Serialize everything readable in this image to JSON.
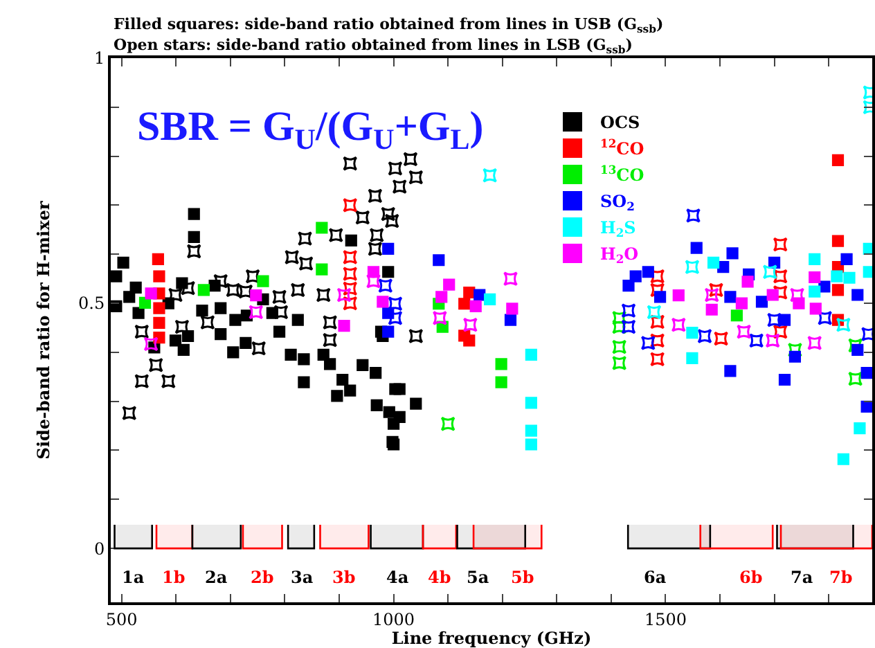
{
  "chart_data": {
    "type": "scatter",
    "title": "Filled squares: side-band ratio obtained from lines in USB (G$_{ssb}$)",
    "subtitle": "Open stars: side-band ratio obtained from lines in LSB (G$_{ssb}$)",
    "xlabel": "Line frequency (GHz)",
    "ylabel": "Side-band ratio for H-mixer",
    "annotations": [
      "SBR = G$_{U}$/(G$_{U}$+G$_{L}$)"
    ],
    "xlim": [
      480,
      1880
    ],
    "ylim": [
      -0.11,
      1
    ],
    "xticks": [
      500,
      {
        "value": 600,
        "label": null
      },
      {
        "value": 700,
        "label": null
      },
      {
        "value": 800,
        "label": null
      },
      {
        "value": 900,
        "label": null
      },
      1000,
      {
        "value": 1100,
        "label": null
      },
      {
        "value": 1200,
        "label": null
      },
      {
        "value": 1300,
        "label": null
      },
      {
        "value": 1400,
        "label": null
      },
      1500,
      {
        "value": 1600,
        "label": null
      },
      {
        "value": 1700,
        "label": null
      },
      {
        "value": 1800,
        "label": null
      }
    ],
    "yticks": [
      0,
      {
        "value": 0.1,
        "label": null
      },
      {
        "value": 0.2,
        "label": null
      },
      {
        "value": 0.3,
        "label": null
      },
      {
        "value": 0.4,
        "label": null
      },
      0.5,
      {
        "value": 0.6,
        "label": null
      },
      {
        "value": 0.7,
        "label": null
      },
      {
        "value": 0.8,
        "label": null
      },
      {
        "value": 0.9,
        "label": null
      },
      1
    ],
    "grid": false,
    "legend": "top",
    "series": [
      {
        "name": "OCS",
        "color": "#000000",
        "marker": "square",
        "x": [
          503,
          490,
          490,
          514,
          526,
          531,
          560,
          586,
          599,
          611,
          614,
          622,
          633,
          633,
          648,
          671,
          682,
          682,
          705,
          709,
          728,
          730,
          760,
          777,
          790,
          811,
          824,
          835,
          835,
          871,
          883,
          896,
          906,
          920,
          922,
          943,
          967,
          969,
          977,
          980,
          990,
          992,
          1000,
          1011,
          1000,
          1011,
          1041,
          1003,
          998
        ],
        "values": [
          0.583,
          0.555,
          0.494,
          0.513,
          0.532,
          0.48,
          0.41,
          0.5,
          0.424,
          0.541,
          0.405,
          0.433,
          0.682,
          0.635,
          0.485,
          0.536,
          0.49,
          0.437,
          0.4,
          0.466,
          0.419,
          0.475,
          0.508,
          0.48,
          0.442,
          0.395,
          0.466,
          0.386,
          0.339,
          0.395,
          0.376,
          0.311,
          0.344,
          0.322,
          0.628,
          0.374,
          0.358,
          0.292,
          0.442,
          0.433,
          0.564,
          0.278,
          0.254,
          0.325,
          0.212,
          0.268,
          0.295,
          0.325,
          0.217
        ]
      },
      {
        "color": "#000000",
        "marker": "star",
        "x": [
          514,
          537,
          537,
          563,
          586,
          599,
          611,
          622,
          633,
          658,
          682,
          705,
          728,
          741,
          752,
          790,
          793,
          813,
          824,
          837,
          839,
          871,
          883,
          883,
          894,
          920,
          943,
          966,
          969,
          990,
          1003,
          1011,
          1031,
          1041,
          1041,
          997,
          966
        ],
        "values": [
          0.276,
          0.341,
          0.442,
          0.374,
          0.341,
          0.517,
          0.452,
          0.531,
          0.606,
          0.461,
          0.545,
          0.527,
          0.524,
          0.555,
          0.408,
          0.513,
          0.482,
          0.594,
          0.527,
          0.632,
          0.581,
          0.517,
          0.461,
          0.425,
          0.639,
          0.785,
          0.675,
          0.719,
          0.639,
          0.682,
          0.775,
          0.738,
          0.794,
          0.757,
          0.433,
          0.668,
          0.611
        ]
      },
      {
        "name": "$^{12}$CO",
        "color": "#ff0000",
        "marker": "square",
        "x": [
          567,
          569,
          569,
          569,
          569,
          569,
          1139,
          1130,
          1130,
          1139,
          1817,
          1817,
          1817,
          1817,
          1817
        ],
        "values": [
          0.59,
          0.555,
          0.52,
          0.49,
          0.46,
          0.43,
          0.522,
          0.499,
          0.434,
          0.424,
          0.792,
          0.627,
          0.574,
          0.527,
          0.466
        ]
      },
      {
        "color": "#ff0000",
        "marker": "star",
        "x": [
          920,
          920,
          920,
          920,
          920,
          1485,
          1485,
          1485,
          1485,
          1485,
          1593,
          1602,
          1711,
          1711,
          1711,
          1711
        ],
        "values": [
          0.7,
          0.594,
          0.56,
          0.53,
          0.5,
          0.555,
          0.527,
          0.462,
          0.424,
          0.386,
          0.527,
          0.428,
          0.62,
          0.555,
          0.522,
          0.442
        ]
      },
      {
        "name": "$^{13}$CO",
        "color": "#00ee00",
        "marker": "square",
        "x": [
          543,
          651,
          760,
          868,
          868,
          1083,
          1090,
          1198,
          1198,
          1631
        ],
        "values": [
          0.501,
          0.527,
          0.545,
          0.654,
          0.569,
          0.499,
          0.452,
          0.376,
          0.339,
          0.475
        ]
      },
      {
        "color": "#00ee00",
        "marker": "star",
        "x": [
          1100,
          1415,
          1415,
          1415,
          1415,
          1738,
          1849,
          1849
        ],
        "values": [
          0.254,
          0.47,
          0.452,
          0.411,
          0.378,
          0.405,
          0.414,
          0.346
        ]
      },
      {
        "name": "SO$_{2}$",
        "color": "#0000ff",
        "marker": "square",
        "x": [
          990,
          990,
          990,
          1083,
          1158,
          1215,
          1432,
          1445,
          1468,
          1490,
          1557,
          1623,
          1606,
          1619,
          1619,
          1653,
          1677,
          1700,
          1719,
          1719,
          1738,
          1792,
          1833,
          1853,
          1853,
          1870,
          1870
        ],
        "values": [
          0.611,
          0.48,
          0.442,
          0.588,
          0.517,
          0.466,
          0.536,
          0.555,
          0.564,
          0.513,
          0.613,
          0.602,
          0.574,
          0.513,
          0.362,
          0.559,
          0.503,
          0.583,
          0.466,
          0.344,
          0.391,
          0.534,
          0.59,
          0.517,
          0.405,
          0.358,
          0.289
        ]
      },
      {
        "color": "#0000ff",
        "marker": "star",
        "x": [
          985,
          1003,
          1003,
          1432,
          1432,
          1468,
          1551,
          1572,
          1667,
          1700,
          1793,
          1873
        ],
        "values": [
          0.536,
          0.499,
          0.47,
          0.485,
          0.452,
          0.419,
          0.679,
          0.433,
          0.424,
          0.466,
          0.47,
          0.437
        ]
      },
      {
        "name": "H$_{2}$S",
        "color": "#00ffff",
        "marker": "square",
        "x": [
          1177,
          1253,
          1253,
          1253,
          1253,
          1549,
          1549,
          1588,
          1774,
          1774,
          1815,
          1838,
          1827,
          1857,
          1874,
          1874
        ],
        "values": [
          0.508,
          0.395,
          0.297,
          0.24,
          0.212,
          0.44,
          0.388,
          0.583,
          0.59,
          0.524,
          0.555,
          0.552,
          0.182,
          0.245,
          0.611,
          0.564
        ]
      },
      {
        "color": "#00ffff",
        "marker": "star",
        "x": [
          1177,
          1876,
          1876,
          1549,
          1479,
          1692,
          1827
        ],
        "values": [
          0.761,
          0.93,
          0.9,
          0.574,
          0.482,
          0.564,
          0.456
        ]
      },
      {
        "name": "H$_{2}$O",
        "color": "#ff00ff",
        "marker": "square",
        "x": [
          554,
          747,
          909,
          963,
          980,
          1102,
          1088,
          1151,
          1218,
          1524,
          1651,
          1640,
          1585,
          1697,
          1745,
          1774,
          1776
        ],
        "values": [
          0.52,
          0.516,
          0.454,
          0.564,
          0.503,
          0.538,
          0.513,
          0.494,
          0.489,
          0.516,
          0.544,
          0.5,
          0.487,
          0.517,
          0.5,
          0.553,
          0.489
        ]
      },
      {
        "color": "#ff00ff",
        "marker": "star",
        "x": [
          554,
          747,
          909,
          963,
          1085,
          1141,
          1215,
          1524,
          1585,
          1644,
          1697,
          1742,
          1774
        ],
        "values": [
          0.417,
          0.482,
          0.517,
          0.545,
          0.47,
          0.456,
          0.55,
          0.456,
          0.517,
          0.442,
          0.424,
          0.517,
          0.419
        ]
      }
    ],
    "bands": [
      {
        "axis": "x",
        "from": 487,
        "to": 556,
        "label": "1a",
        "color": "#000000"
      },
      {
        "axis": "x",
        "from": 564,
        "to": 630,
        "label": "1b",
        "color": "#ff0000"
      },
      {
        "axis": "x",
        "from": 630,
        "to": 719,
        "label": "2a",
        "color": "#000000"
      },
      {
        "axis": "x",
        "from": 723,
        "to": 795,
        "label": "2b",
        "color": "#ff0000"
      },
      {
        "axis": "x",
        "from": 806,
        "to": 854,
        "label": "3a",
        "color": "#000000"
      },
      {
        "axis": "x",
        "from": 865,
        "to": 954,
        "label": "3b",
        "color": "#ff0000"
      },
      {
        "axis": "x",
        "from": 958,
        "to": 1054,
        "label": "4a",
        "color": "#000000"
      },
      {
        "axis": "x",
        "from": 1054,
        "to": 1115,
        "label": "4b",
        "color": "#ff0000"
      },
      {
        "axis": "x",
        "from": 1117,
        "to": 1242,
        "label": "5a",
        "color": "#000000"
      },
      {
        "axis": "x",
        "from": 1147,
        "to": 1272,
        "label": "5b",
        "color": "#ff0000"
      },
      {
        "axis": "x",
        "from": 1431,
        "to": 1582,
        "label": "6a",
        "color": "#000000"
      },
      {
        "axis": "x",
        "from": 1564,
        "to": 1697,
        "label": "6b",
        "color": "#ff0000"
      },
      {
        "axis": "x",
        "from": 1705,
        "to": 1845,
        "label": "7a",
        "color": "#000000"
      },
      {
        "axis": "x",
        "from": 1712,
        "to": 1880,
        "label": "7b",
        "color": "#ff0000"
      }
    ]
  }
}
